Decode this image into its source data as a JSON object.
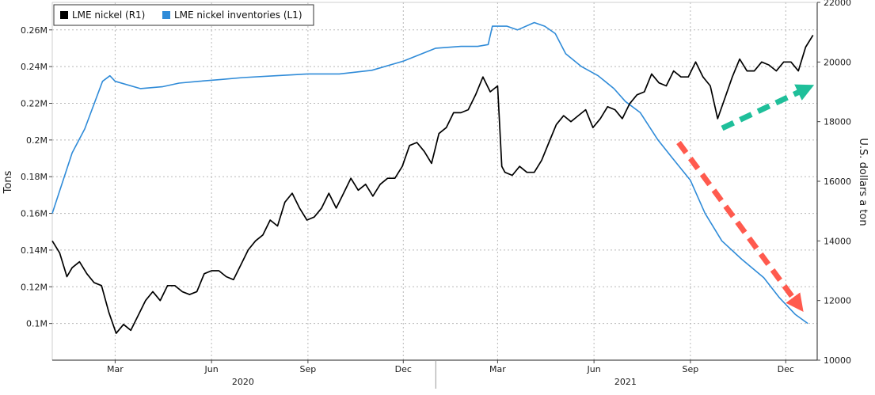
{
  "chart_data": {
    "type": "line",
    "title": "",
    "legend": {
      "placement": "top-left",
      "entries": [
        {
          "label": "LME nickel (R1)",
          "color": "#000000"
        },
        {
          "label": "LME nickel inventories (L1)",
          "color": "#2f8bd8"
        }
      ]
    },
    "left_axis": {
      "label": "Tons",
      "range": [
        0.08,
        0.275
      ],
      "ticks": [
        0.1,
        0.12,
        0.14,
        0.16,
        0.18,
        0.2,
        0.22,
        0.24,
        0.26
      ],
      "tick_labels": [
        "0.1M",
        "0.12M",
        "0.14M",
        "0.16M",
        "0.18M",
        "0.2M",
        "0.22M",
        "0.24M",
        "0.26M"
      ]
    },
    "right_axis": {
      "label": "U.S. dollars a ton",
      "range": [
        10000,
        22000
      ],
      "ticks": [
        10000,
        12000,
        14000,
        16000,
        18000,
        20000,
        22000
      ],
      "tick_labels": [
        "10000",
        "12000",
        "14000",
        "16000",
        "18000",
        "20000",
        "22000"
      ]
    },
    "x_axis": {
      "range": [
        "2020-01-01",
        "2021-12-31"
      ],
      "month_ticks": [
        {
          "date": "2020-03-01",
          "label": "Mar"
        },
        {
          "date": "2020-06-01",
          "label": "Jun"
        },
        {
          "date": "2020-09-01",
          "label": "Sep"
        },
        {
          "date": "2020-12-01",
          "label": "Dec"
        },
        {
          "date": "2021-03-01",
          "label": "Mar"
        },
        {
          "date": "2021-06-01",
          "label": "Jun"
        },
        {
          "date": "2021-09-01",
          "label": "Sep"
        },
        {
          "date": "2021-12-01",
          "label": "Dec"
        }
      ],
      "year_labels": [
        {
          "date": "2020-07-01",
          "label": "2020"
        },
        {
          "date": "2021-07-01",
          "label": "2021"
        }
      ],
      "year_boundaries": [
        "2021-01-01"
      ]
    },
    "grid": true,
    "series": [
      {
        "name": "LME nickel inventories (L1)",
        "axis": "left",
        "color": "#2f8bd8",
        "x": [
          "2020-01-01",
          "2020-01-20",
          "2020-02-01",
          "2020-02-18",
          "2020-02-25",
          "2020-03-01",
          "2020-03-25",
          "2020-04-15",
          "2020-05-01",
          "2020-05-20",
          "2020-06-10",
          "2020-07-01",
          "2020-08-01",
          "2020-09-01",
          "2020-10-01",
          "2020-11-01",
          "2020-12-01",
          "2021-01-01",
          "2021-01-25",
          "2021-02-10",
          "2021-02-20",
          "2021-02-24",
          "2021-03-10",
          "2021-03-20",
          "2021-04-05",
          "2021-04-15",
          "2021-04-25",
          "2021-05-05",
          "2021-05-20",
          "2021-06-05",
          "2021-06-20",
          "2021-07-01",
          "2021-07-15",
          "2021-08-01",
          "2021-08-15",
          "2021-09-01",
          "2021-09-15",
          "2021-10-01",
          "2021-10-20",
          "2021-11-10",
          "2021-11-25",
          "2021-12-10",
          "2021-12-22"
        ],
        "values": [
          0.16,
          0.193,
          0.206,
          0.232,
          0.235,
          0.232,
          0.228,
          0.229,
          0.231,
          0.232,
          0.233,
          0.234,
          0.235,
          0.236,
          0.236,
          0.238,
          0.243,
          0.25,
          0.251,
          0.251,
          0.252,
          0.262,
          0.262,
          0.26,
          0.264,
          0.262,
          0.258,
          0.247,
          0.24,
          0.235,
          0.228,
          0.221,
          0.215,
          0.2,
          0.19,
          0.178,
          0.16,
          0.145,
          0.135,
          0.125,
          0.114,
          0.105,
          0.1
        ]
      },
      {
        "name": "LME nickel (R1)",
        "axis": "right",
        "color": "#000000",
        "x": [
          "2020-01-01",
          "2020-01-08",
          "2020-01-15",
          "2020-01-20",
          "2020-01-27",
          "2020-02-03",
          "2020-02-10",
          "2020-02-17",
          "2020-02-24",
          "2020-03-02",
          "2020-03-09",
          "2020-03-16",
          "2020-03-23",
          "2020-03-30",
          "2020-04-06",
          "2020-04-13",
          "2020-04-20",
          "2020-04-27",
          "2020-05-04",
          "2020-05-11",
          "2020-05-18",
          "2020-05-25",
          "2020-06-01",
          "2020-06-08",
          "2020-06-15",
          "2020-06-22",
          "2020-06-29",
          "2020-07-06",
          "2020-07-13",
          "2020-07-20",
          "2020-07-27",
          "2020-08-03",
          "2020-08-10",
          "2020-08-17",
          "2020-08-24",
          "2020-08-31",
          "2020-09-07",
          "2020-09-14",
          "2020-09-21",
          "2020-09-28",
          "2020-10-05",
          "2020-10-12",
          "2020-10-19",
          "2020-10-26",
          "2020-11-02",
          "2020-11-09",
          "2020-11-16",
          "2020-11-23",
          "2020-11-30",
          "2020-12-07",
          "2020-12-14",
          "2020-12-21",
          "2020-12-28",
          "2021-01-04",
          "2021-01-11",
          "2021-01-18",
          "2021-01-25",
          "2021-02-01",
          "2021-02-08",
          "2021-02-15",
          "2021-02-22",
          "2021-03-01",
          "2021-03-05",
          "2021-03-08",
          "2021-03-15",
          "2021-03-22",
          "2021-03-29",
          "2021-04-05",
          "2021-04-12",
          "2021-04-19",
          "2021-04-26",
          "2021-05-03",
          "2021-05-10",
          "2021-05-17",
          "2021-05-24",
          "2021-05-31",
          "2021-06-07",
          "2021-06-14",
          "2021-06-21",
          "2021-06-28",
          "2021-07-05",
          "2021-07-12",
          "2021-07-19",
          "2021-07-26",
          "2021-08-02",
          "2021-08-09",
          "2021-08-16",
          "2021-08-23",
          "2021-08-30",
          "2021-09-06",
          "2021-09-13",
          "2021-09-20",
          "2021-09-27",
          "2021-10-04",
          "2021-10-11",
          "2021-10-18",
          "2021-10-25",
          "2021-11-01",
          "2021-11-08",
          "2021-11-15",
          "2021-11-22",
          "2021-11-29",
          "2021-12-06",
          "2021-12-13",
          "2021-12-20",
          "2021-12-27"
        ],
        "values": [
          14000,
          13600,
          12800,
          13100,
          13300,
          12900,
          12600,
          12500,
          11600,
          10900,
          11200,
          11000,
          11500,
          12000,
          12300,
          12000,
          12500,
          12500,
          12300,
          12200,
          12300,
          12900,
          13000,
          13000,
          12800,
          12700,
          13200,
          13700,
          14000,
          14200,
          14700,
          14500,
          15300,
          15600,
          15100,
          14700,
          14800,
          15100,
          15600,
          15100,
          15600,
          16100,
          15700,
          15900,
          15500,
          15900,
          16100,
          16100,
          16500,
          17200,
          17300,
          17000,
          16600,
          17600,
          17800,
          18300,
          18300,
          18400,
          18900,
          19500,
          19000,
          19200,
          16500,
          16300,
          16200,
          16500,
          16300,
          16300,
          16700,
          17300,
          17900,
          18200,
          18000,
          18200,
          18400,
          17800,
          18100,
          18500,
          18400,
          18100,
          18600,
          18900,
          19000,
          19600,
          19300,
          19200,
          19700,
          19500,
          19500,
          20000,
          19500,
          19200,
          18100,
          18800,
          19500,
          20100,
          19700,
          19700,
          20000,
          19900,
          19700,
          20000,
          20000,
          19700,
          20500,
          20900
        ]
      }
    ],
    "annotations": [
      {
        "type": "arrow",
        "direction": "up",
        "color": "#1fbf9a",
        "style": "dashed"
      },
      {
        "type": "arrow",
        "direction": "down",
        "color": "#ff5a4e",
        "style": "dashed"
      }
    ]
  }
}
